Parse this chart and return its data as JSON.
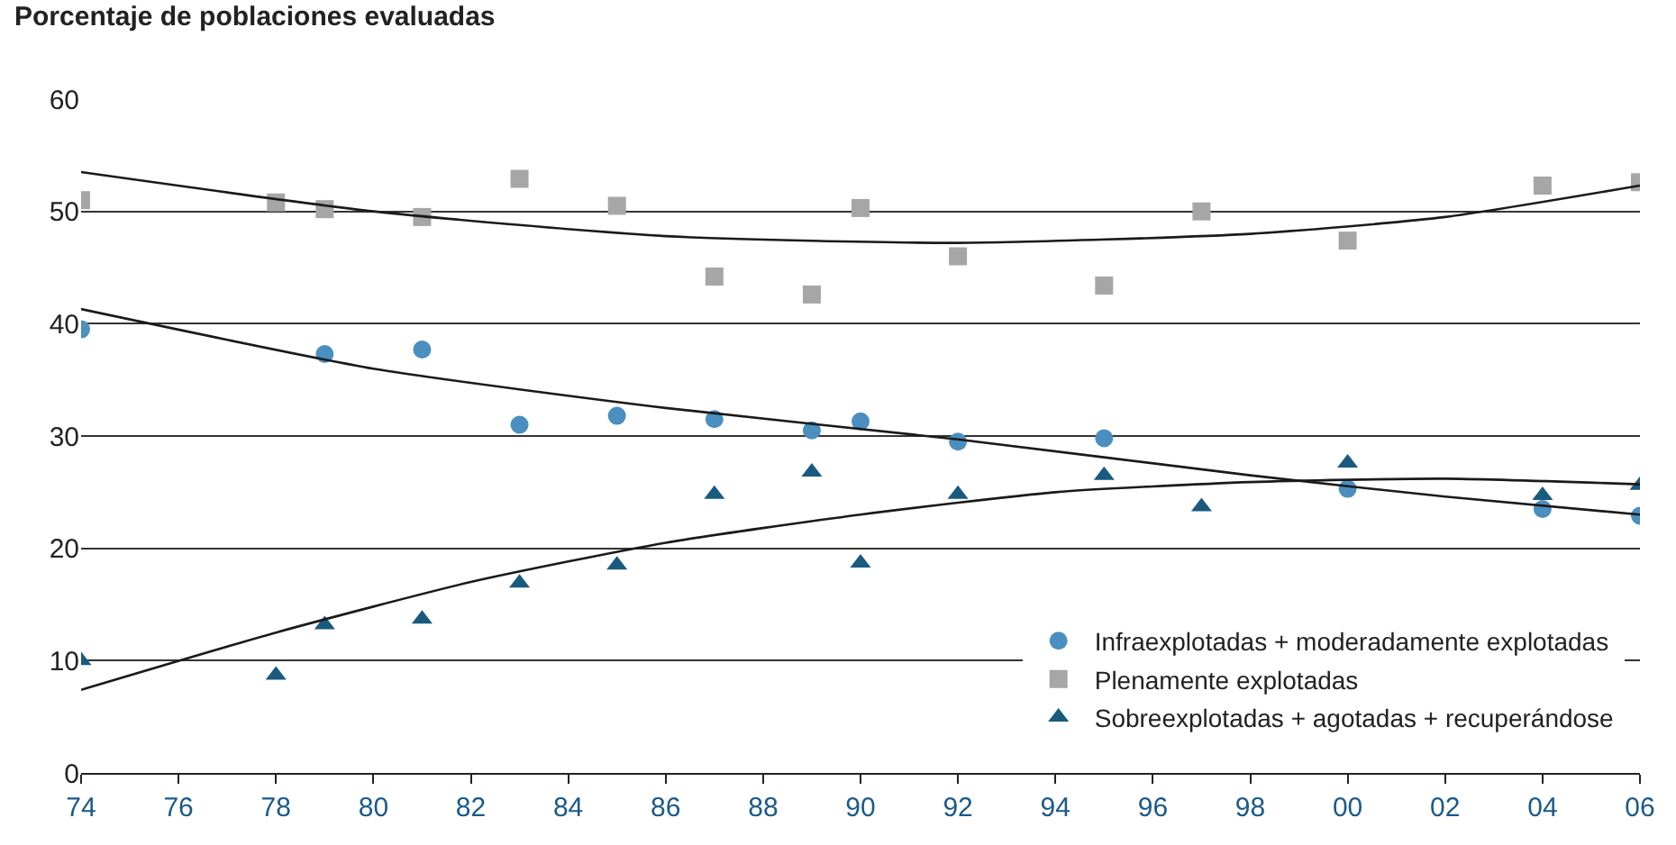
{
  "chart_data": {
    "type": "scatter",
    "ylabel": "Porcentaje de poblaciones evaluadas",
    "xlim": [
      1974,
      2006
    ],
    "ylim": [
      0,
      60
    ],
    "xticks": [
      {
        "value": 1974,
        "label": "74"
      },
      {
        "value": 1976,
        "label": "76"
      },
      {
        "value": 1978,
        "label": "78"
      },
      {
        "value": 1980,
        "label": "80"
      },
      {
        "value": 1982,
        "label": "82"
      },
      {
        "value": 1984,
        "label": "84"
      },
      {
        "value": 1986,
        "label": "86"
      },
      {
        "value": 1988,
        "label": "88"
      },
      {
        "value": 1990,
        "label": "90"
      },
      {
        "value": 1992,
        "label": "92"
      },
      {
        "value": 1994,
        "label": "94"
      },
      {
        "value": 1996,
        "label": "96"
      },
      {
        "value": 1998,
        "label": "98"
      },
      {
        "value": 2000,
        "label": "00"
      },
      {
        "value": 2002,
        "label": "02"
      },
      {
        "value": 2004,
        "label": "04"
      },
      {
        "value": 2006,
        "label": "06"
      }
    ],
    "yticks": [
      0,
      10,
      20,
      30,
      40,
      50,
      60
    ],
    "grid": "y",
    "legend": "bottom right",
    "series": [
      {
        "name": "Infraexplotadas + moderadamente explotadas",
        "color": "#4a8fbf",
        "marker": "circle",
        "x": [
          1974,
          1979,
          1981,
          1983,
          1985,
          1987,
          1989,
          1990,
          1992,
          1995,
          2000,
          2004,
          2006
        ],
        "values": [
          39.5,
          37.3,
          37.7,
          31.0,
          31.8,
          31.5,
          30.5,
          31.3,
          29.5,
          29.8,
          25.3,
          23.5,
          22.9
        ]
      },
      {
        "name": "Plenamente explotadas",
        "color": "#a6a6a6",
        "marker": "square",
        "x": [
          1974,
          1978,
          1979,
          1981,
          1983,
          1985,
          1987,
          1989,
          1990,
          1992,
          1995,
          1997,
          2000,
          2004,
          2006
        ],
        "values": [
          51.0,
          50.8,
          50.2,
          49.5,
          52.9,
          50.5,
          44.2,
          42.6,
          50.3,
          46.0,
          43.4,
          50.0,
          47.4,
          52.3,
          52.6
        ]
      },
      {
        "name": "Sobreexplotadas + agotadas + recuperándose",
        "color": "#1a5a7f",
        "marker": "triangle",
        "x": [
          1974,
          1978,
          1979,
          1981,
          1983,
          1985,
          1987,
          1989,
          1990,
          1992,
          1995,
          1997,
          2000,
          2004,
          2006
        ],
        "values": [
          10.0,
          8.7,
          13.2,
          13.7,
          16.9,
          18.5,
          24.8,
          26.8,
          18.7,
          24.8,
          26.5,
          23.7,
          27.6,
          24.7,
          25.6
        ]
      },
      {
        "type": "line",
        "color": "#1a1a1a",
        "marker": "none",
        "line_style": "solid",
        "x": [
          1974,
          1980,
          1986,
          1992,
          1998,
          2002,
          2006
        ],
        "values": [
          41.3,
          36.0,
          32.5,
          29.7,
          26.5,
          24.6,
          23.0
        ]
      },
      {
        "type": "line",
        "color": "#1a1a1a",
        "marker": "none",
        "line_style": "solid",
        "x": [
          1974,
          1980,
          1986,
          1992,
          1998,
          2002,
          2006
        ],
        "values": [
          53.5,
          50.0,
          47.8,
          47.2,
          48.0,
          49.5,
          52.3
        ]
      },
      {
        "type": "line",
        "color": "#1a1a1a",
        "marker": "none",
        "line_style": "solid",
        "x": [
          1974,
          1978,
          1982,
          1986,
          1990,
          1994,
          1998,
          2002,
          2006
        ],
        "values": [
          7.4,
          12.5,
          17.0,
          20.5,
          23.0,
          25.0,
          25.9,
          26.2,
          25.7
        ]
      }
    ]
  }
}
